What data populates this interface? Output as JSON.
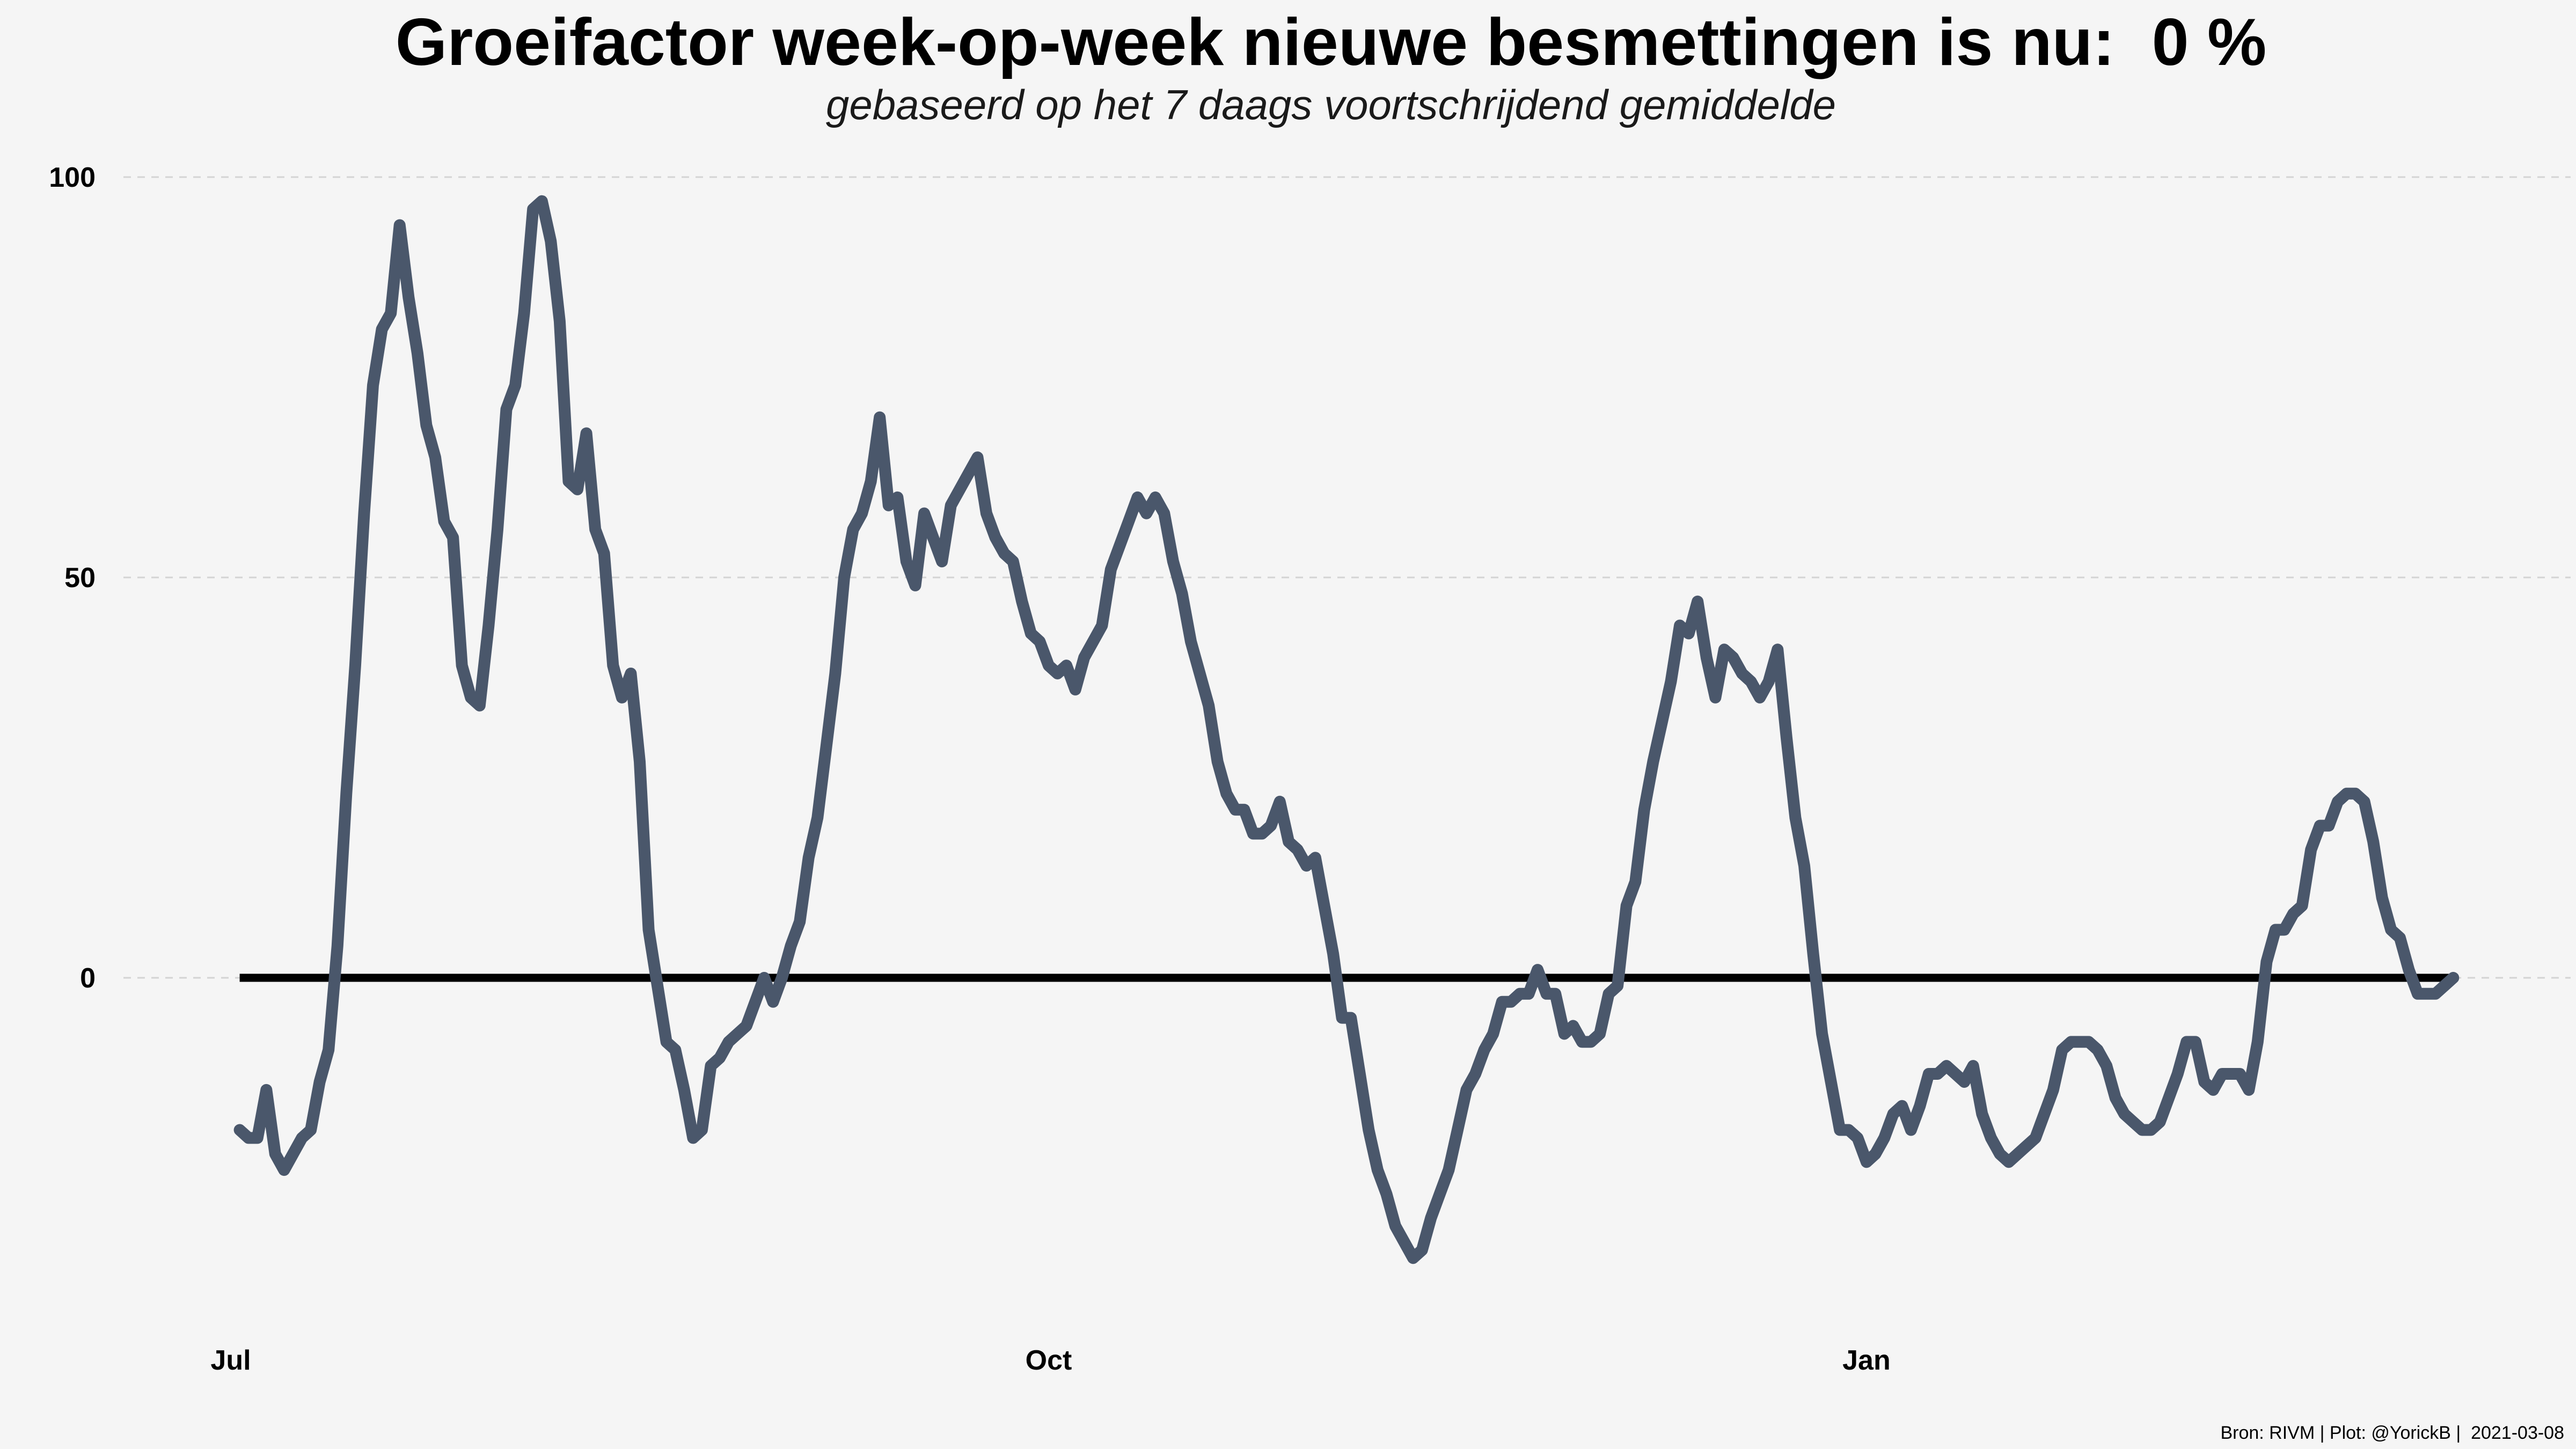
{
  "title": "Groeifactor week-op-week nieuwe besmettingen is nu:  0 %",
  "subtitle": "gebaseerd op het 7 daags voortschrijdend gemiddelde",
  "caption": "Bron: RIVM | Plot: @YorickB |  2021-03-08",
  "colors": {
    "background": "#f5f5f5",
    "line": "#4a576b",
    "zero_line": "#000000",
    "grid": "#d4d4d4"
  },
  "chart_data": {
    "type": "line",
    "title": "Groeifactor week-op-week nieuwe besmettingen is nu:  0 %",
    "subtitle": "gebaseerd op het 7 daags voortschrijdend gemiddelde",
    "xlabel": "",
    "ylabel": "",
    "x_range": [
      "2020-06-24",
      "2021-03-15"
    ],
    "ylim": [
      -45,
      103
    ],
    "y_ticks": [
      0,
      50,
      100
    ],
    "y_tick_labels": [
      "0",
      "50",
      "100"
    ],
    "x_ticks": [
      "2020-07-01",
      "2020-10-01",
      "2021-01-01"
    ],
    "x_tick_labels": [
      "Jul",
      "Oct",
      "Jan"
    ],
    "grid": "horizontal dashed",
    "legend": "none",
    "reference_line": {
      "y": 0,
      "from": "2020-07-02",
      "to": "2021-03-08"
    },
    "series": [
      {
        "values": [
          [
            "2020-07-02",
            -19
          ],
          [
            "2020-07-03",
            -20
          ],
          [
            "2020-07-04",
            -20
          ],
          [
            "2020-07-05",
            -14
          ],
          [
            "2020-07-06",
            -22
          ],
          [
            "2020-07-07",
            -24
          ],
          [
            "2020-07-08",
            -22
          ],
          [
            "2020-07-09",
            -20
          ],
          [
            "2020-07-10",
            -19
          ],
          [
            "2020-07-11",
            -13
          ],
          [
            "2020-07-12",
            -9
          ],
          [
            "2020-07-13",
            4
          ],
          [
            "2020-07-14",
            23
          ],
          [
            "2020-07-15",
            39
          ],
          [
            "2020-07-16",
            58
          ],
          [
            "2020-07-17",
            74
          ],
          [
            "2020-07-18",
            81
          ],
          [
            "2020-07-19",
            83
          ],
          [
            "2020-07-20",
            94
          ],
          [
            "2020-07-21",
            85
          ],
          [
            "2020-07-22",
            78
          ],
          [
            "2020-07-23",
            69
          ],
          [
            "2020-07-24",
            65
          ],
          [
            "2020-07-25",
            57
          ],
          [
            "2020-07-26",
            55
          ],
          [
            "2020-07-27",
            39
          ],
          [
            "2020-07-28",
            35
          ],
          [
            "2020-07-29",
            34
          ],
          [
            "2020-07-30",
            44
          ],
          [
            "2020-07-31",
            56
          ],
          [
            "2020-08-01",
            71
          ],
          [
            "2020-08-02",
            74
          ],
          [
            "2020-08-03",
            83
          ],
          [
            "2020-08-04",
            96
          ],
          [
            "2020-08-05",
            97
          ],
          [
            "2020-08-06",
            92
          ],
          [
            "2020-08-07",
            82
          ],
          [
            "2020-08-08",
            62
          ],
          [
            "2020-08-09",
            61
          ],
          [
            "2020-08-10",
            68
          ],
          [
            "2020-08-11",
            56
          ],
          [
            "2020-08-12",
            53
          ],
          [
            "2020-08-13",
            39
          ],
          [
            "2020-08-14",
            35
          ],
          [
            "2020-08-15",
            38
          ],
          [
            "2020-08-16",
            27
          ],
          [
            "2020-08-17",
            6
          ],
          [
            "2020-08-18",
            -1
          ],
          [
            "2020-08-19",
            -8
          ],
          [
            "2020-08-20",
            -9
          ],
          [
            "2020-08-21",
            -14
          ],
          [
            "2020-08-22",
            -20
          ],
          [
            "2020-08-23",
            -19
          ],
          [
            "2020-08-24",
            -11
          ],
          [
            "2020-08-25",
            -10
          ],
          [
            "2020-08-26",
            -8
          ],
          [
            "2020-08-27",
            -7
          ],
          [
            "2020-08-28",
            -6
          ],
          [
            "2020-08-29",
            -3
          ],
          [
            "2020-08-30",
            0
          ],
          [
            "2020-08-31",
            -3
          ],
          [
            "2020-09-01",
            0
          ],
          [
            "2020-09-02",
            4
          ],
          [
            "2020-09-03",
            7
          ],
          [
            "2020-09-04",
            15
          ],
          [
            "2020-09-05",
            20
          ],
          [
            "2020-09-06",
            29
          ],
          [
            "2020-09-07",
            38
          ],
          [
            "2020-09-08",
            50
          ],
          [
            "2020-09-09",
            56
          ],
          [
            "2020-09-10",
            58
          ],
          [
            "2020-09-11",
            62
          ],
          [
            "2020-09-12",
            70
          ],
          [
            "2020-09-13",
            59
          ],
          [
            "2020-09-14",
            60
          ],
          [
            "2020-09-15",
            52
          ],
          [
            "2020-09-16",
            49
          ],
          [
            "2020-09-17",
            58
          ],
          [
            "2020-09-18",
            55
          ],
          [
            "2020-09-19",
            52
          ],
          [
            "2020-09-20",
            59
          ],
          [
            "2020-09-21",
            61
          ],
          [
            "2020-09-22",
            63
          ],
          [
            "2020-09-23",
            65
          ],
          [
            "2020-09-24",
            58
          ],
          [
            "2020-09-25",
            55
          ],
          [
            "2020-09-26",
            53
          ],
          [
            "2020-09-27",
            52
          ],
          [
            "2020-09-28",
            47
          ],
          [
            "2020-09-29",
            43
          ],
          [
            "2020-09-30",
            42
          ],
          [
            "2020-10-01",
            39
          ],
          [
            "2020-10-02",
            38
          ],
          [
            "2020-10-03",
            39
          ],
          [
            "2020-10-04",
            36
          ],
          [
            "2020-10-05",
            40
          ],
          [
            "2020-10-06",
            42
          ],
          [
            "2020-10-07",
            44
          ],
          [
            "2020-10-08",
            51
          ],
          [
            "2020-10-09",
            54
          ],
          [
            "2020-10-10",
            57
          ],
          [
            "2020-10-11",
            60
          ],
          [
            "2020-10-12",
            58
          ],
          [
            "2020-10-13",
            60
          ],
          [
            "2020-10-14",
            58
          ],
          [
            "2020-10-15",
            52
          ],
          [
            "2020-10-16",
            48
          ],
          [
            "2020-10-17",
            42
          ],
          [
            "2020-10-18",
            38
          ],
          [
            "2020-10-19",
            34
          ],
          [
            "2020-10-20",
            27
          ],
          [
            "2020-10-21",
            23
          ],
          [
            "2020-10-22",
            21
          ],
          [
            "2020-10-23",
            21
          ],
          [
            "2020-10-24",
            18
          ],
          [
            "2020-10-25",
            18
          ],
          [
            "2020-10-26",
            19
          ],
          [
            "2020-10-27",
            22
          ],
          [
            "2020-10-28",
            17
          ],
          [
            "2020-10-29",
            16
          ],
          [
            "2020-10-30",
            14
          ],
          [
            "2020-10-31",
            15
          ],
          [
            "2020-11-01",
            9
          ],
          [
            "2020-11-02",
            3
          ],
          [
            "2020-11-03",
            -5
          ],
          [
            "2020-11-04",
            -5
          ],
          [
            "2020-11-05",
            -12
          ],
          [
            "2020-11-06",
            -19
          ],
          [
            "2020-11-07",
            -24
          ],
          [
            "2020-11-08",
            -27
          ],
          [
            "2020-11-09",
            -31
          ],
          [
            "2020-11-10",
            -33
          ],
          [
            "2020-11-11",
            -35
          ],
          [
            "2020-11-12",
            -34
          ],
          [
            "2020-11-13",
            -30
          ],
          [
            "2020-11-14",
            -27
          ],
          [
            "2020-11-15",
            -24
          ],
          [
            "2020-11-16",
            -19
          ],
          [
            "2020-11-17",
            -14
          ],
          [
            "2020-11-18",
            -12
          ],
          [
            "2020-11-19",
            -9
          ],
          [
            "2020-11-20",
            -7
          ],
          [
            "2020-11-21",
            -3
          ],
          [
            "2020-11-22",
            -3
          ],
          [
            "2020-11-23",
            -2
          ],
          [
            "2020-11-24",
            -2
          ],
          [
            "2020-11-25",
            1
          ],
          [
            "2020-11-26",
            -2
          ],
          [
            "2020-11-27",
            -2
          ],
          [
            "2020-11-28",
            -7
          ],
          [
            "2020-11-29",
            -6
          ],
          [
            "2020-11-30",
            -8
          ],
          [
            "2020-12-01",
            -8
          ],
          [
            "2020-12-02",
            -7
          ],
          [
            "2020-12-03",
            -2
          ],
          [
            "2020-12-04",
            -1
          ],
          [
            "2020-12-05",
            9
          ],
          [
            "2020-12-06",
            12
          ],
          [
            "2020-12-07",
            21
          ],
          [
            "2020-12-08",
            27
          ],
          [
            "2020-12-09",
            32
          ],
          [
            "2020-12-10",
            37
          ],
          [
            "2020-12-11",
            44
          ],
          [
            "2020-12-12",
            43
          ],
          [
            "2020-12-13",
            47
          ],
          [
            "2020-12-14",
            40
          ],
          [
            "2020-12-15",
            35
          ],
          [
            "2020-12-16",
            41
          ],
          [
            "2020-12-17",
            40
          ],
          [
            "2020-12-18",
            38
          ],
          [
            "2020-12-19",
            37
          ],
          [
            "2020-12-20",
            35
          ],
          [
            "2020-12-21",
            37
          ],
          [
            "2020-12-22",
            41
          ],
          [
            "2020-12-23",
            30
          ],
          [
            "2020-12-24",
            20
          ],
          [
            "2020-12-25",
            14
          ],
          [
            "2020-12-26",
            3
          ],
          [
            "2020-12-27",
            -7
          ],
          [
            "2020-12-28",
            -13
          ],
          [
            "2020-12-29",
            -19
          ],
          [
            "2020-12-30",
            -19
          ],
          [
            "2020-12-31",
            -20
          ],
          [
            "2021-01-01",
            -23
          ],
          [
            "2021-01-02",
            -22
          ],
          [
            "2021-01-03",
            -20
          ],
          [
            "2021-01-04",
            -17
          ],
          [
            "2021-01-05",
            -16
          ],
          [
            "2021-01-06",
            -19
          ],
          [
            "2021-01-07",
            -16
          ],
          [
            "2021-01-08",
            -12
          ],
          [
            "2021-01-09",
            -12
          ],
          [
            "2021-01-10",
            -11
          ],
          [
            "2021-01-11",
            -12
          ],
          [
            "2021-01-12",
            -13
          ],
          [
            "2021-01-13",
            -11
          ],
          [
            "2021-01-14",
            -17
          ],
          [
            "2021-01-15",
            -20
          ],
          [
            "2021-01-16",
            -22
          ],
          [
            "2021-01-17",
            -23
          ],
          [
            "2021-01-18",
            -22
          ],
          [
            "2021-01-19",
            -21
          ],
          [
            "2021-01-20",
            -20
          ],
          [
            "2021-01-21",
            -17
          ],
          [
            "2021-01-22",
            -14
          ],
          [
            "2021-01-23",
            -9
          ],
          [
            "2021-01-24",
            -8
          ],
          [
            "2021-01-25",
            -8
          ],
          [
            "2021-01-26",
            -8
          ],
          [
            "2021-01-27",
            -9
          ],
          [
            "2021-01-28",
            -11
          ],
          [
            "2021-01-29",
            -15
          ],
          [
            "2021-01-30",
            -17
          ],
          [
            "2021-01-31",
            -18
          ],
          [
            "2021-02-01",
            -19
          ],
          [
            "2021-02-02",
            -19
          ],
          [
            "2021-02-03",
            -18
          ],
          [
            "2021-02-04",
            -15
          ],
          [
            "2021-02-05",
            -12
          ],
          [
            "2021-02-06",
            -8
          ],
          [
            "2021-02-07",
            -8
          ],
          [
            "2021-02-08",
            -13
          ],
          [
            "2021-02-09",
            -14
          ],
          [
            "2021-02-10",
            -12
          ],
          [
            "2021-02-11",
            -12
          ],
          [
            "2021-02-12",
            -12
          ],
          [
            "2021-02-13",
            -14
          ],
          [
            "2021-02-14",
            -8
          ],
          [
            "2021-02-15",
            2
          ],
          [
            "2021-02-16",
            6
          ],
          [
            "2021-02-17",
            6
          ],
          [
            "2021-02-18",
            8
          ],
          [
            "2021-02-19",
            9
          ],
          [
            "2021-02-20",
            16
          ],
          [
            "2021-02-21",
            19
          ],
          [
            "2021-02-22",
            19
          ],
          [
            "2021-02-23",
            22
          ],
          [
            "2021-02-24",
            23
          ],
          [
            "2021-02-25",
            23
          ],
          [
            "2021-02-26",
            22
          ],
          [
            "2021-02-27",
            17
          ],
          [
            "2021-02-28",
            10
          ],
          [
            "2021-03-01",
            6
          ],
          [
            "2021-03-02",
            5
          ],
          [
            "2021-03-03",
            1
          ],
          [
            "2021-03-04",
            -2
          ],
          [
            "2021-03-05",
            -2
          ],
          [
            "2021-03-06",
            -2
          ],
          [
            "2021-03-07",
            -1
          ],
          [
            "2021-03-08",
            0
          ]
        ]
      }
    ]
  }
}
